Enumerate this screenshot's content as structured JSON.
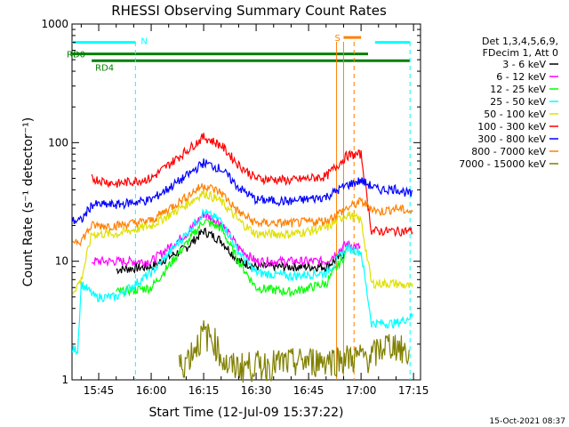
{
  "chart_data": {
    "type": "line",
    "title": "RHESSI Observing Summary Count Rates",
    "xlabel": "Start Time (12-Jul-09 15:37:22)",
    "ylabel": "Count Rate (s⁻¹ detector⁻¹)",
    "x_unit": "minutes",
    "xlim": [
      "15:37:22",
      "17:17"
    ],
    "ylim": [
      1,
      1000
    ],
    "y_scale": "log",
    "x_ticks": [
      "15:45",
      "16:00",
      "16:15",
      "16:30",
      "16:45",
      "17:00",
      "17:15"
    ],
    "y_ticks": [
      "1",
      "10",
      "100",
      "1000"
    ],
    "legend_title": [
      "Det 1,3,4,5,6,9,",
      "FDecim 1, Att 0"
    ],
    "legend_position": "right",
    "date_stamp": "15-Oct-2021 08:37",
    "flags": [
      {
        "label": "N",
        "color": "#00ffff",
        "start": "15:37:22",
        "end": "15:55:30",
        "level": 700
      },
      {
        "label": "N",
        "color": "#00ffff",
        "start": "17:04",
        "end": "17:14",
        "level": 700
      },
      {
        "label": "RD0",
        "color": "#008000",
        "start": "15:37:22",
        "end": "17:02",
        "level": 560
      },
      {
        "label": "RD4",
        "color": "#008000",
        "start": "15:43",
        "end": "17:14",
        "level": 490
      },
      {
        "label": "S",
        "color": "#ff8000",
        "start": "16:55",
        "end": "17:00",
        "level": 770
      }
    ],
    "vlines": [
      {
        "time": "15:55:30",
        "color": "#00ffff",
        "style": "dashed"
      },
      {
        "time": "17:14",
        "color": "#00ffff",
        "style": "dashed"
      },
      {
        "time": "16:53",
        "color": "#ff8000",
        "style": "solid"
      },
      {
        "time": "16:55",
        "color": "#ff8000",
        "style": "solid"
      },
      {
        "time": "16:58",
        "color": "#ff8000",
        "style": "dashed"
      }
    ],
    "series": [
      {
        "name": "3 - 6 keV",
        "color": "#000000",
        "x": [
          "15:37:30",
          "15:43",
          "15:50",
          "16:00",
          "16:10",
          "16:15",
          "16:20",
          "16:25",
          "16:30",
          "16:40",
          "16:50",
          "16:56",
          "17:00"
        ],
        "values": [
          null,
          null,
          8.5,
          9,
          13,
          18,
          15,
          10,
          9,
          9,
          9,
          12,
          null
        ]
      },
      {
        "name": "6 - 12 keV",
        "color": "#ff00ff",
        "x": [
          "15:37:30",
          "15:43",
          "15:50",
          "16:00",
          "16:10",
          "16:15",
          "16:20",
          "16:25",
          "16:30",
          "16:40",
          "16:50",
          "16:56",
          "17:00",
          "17:05",
          "17:15"
        ],
        "values": [
          null,
          10,
          10,
          10,
          17,
          25,
          21,
          13,
          10,
          10,
          10,
          14,
          13,
          null,
          null
        ]
      },
      {
        "name": "12 - 25 keV",
        "color": "#00ff00",
        "x": [
          "15:37:30",
          "15:50",
          "16:00",
          "16:10",
          "16:15",
          "16:20",
          "16:25",
          "16:30",
          "16:40",
          "16:50",
          "16:56",
          "17:00"
        ],
        "values": [
          null,
          5.5,
          6,
          14,
          22,
          19,
          10,
          6,
          5.5,
          6.5,
          12,
          null
        ]
      },
      {
        "name": "25 - 50 keV",
        "color": "#00ffff",
        "x": [
          "15:37:30",
          "15:39",
          "15:40",
          "15:44",
          "15:50",
          "16:00",
          "16:10",
          "16:15",
          "16:20",
          "16:25",
          "16:30",
          "16:40",
          "16:50",
          "16:56",
          "17:00",
          "17:03",
          "17:10",
          "17:15"
        ],
        "values": [
          1.8,
          1.8,
          6.5,
          5,
          5,
          8,
          17,
          26,
          22,
          12,
          8,
          7.5,
          8,
          13,
          12,
          3,
          3,
          3.5
        ]
      },
      {
        "name": "50 - 100 keV",
        "color": "#e0e000",
        "x": [
          "15:37:30",
          "15:40",
          "15:43",
          "15:50",
          "16:00",
          "16:10",
          "16:15",
          "16:20",
          "16:25",
          "16:30",
          "16:40",
          "16:50",
          "16:56",
          "17:00",
          "17:03",
          "17:10",
          "17:15"
        ],
        "values": [
          5.5,
          7,
          17,
          17,
          20,
          30,
          38,
          32,
          22,
          17,
          17,
          19,
          25,
          22,
          6.5,
          6.5,
          6
        ]
      },
      {
        "name": "100 - 300 keV",
        "color": "#ff0000",
        "x": [
          "15:37:30",
          "15:40",
          "15:43",
          "15:50",
          "16:00",
          "16:10",
          "16:15",
          "16:20",
          "16:25",
          "16:30",
          "16:40",
          "16:50",
          "16:56",
          "17:00",
          "17:03",
          "17:10",
          "17:15"
        ],
        "values": [
          null,
          null,
          50,
          45,
          50,
          85,
          112,
          95,
          65,
          50,
          48,
          52,
          78,
          80,
          18,
          18,
          18
        ]
      },
      {
        "name": "300 - 800 keV",
        "color": "#0000ff",
        "x": [
          "15:37:30",
          "15:40",
          "15:43",
          "15:50",
          "16:00",
          "16:10",
          "16:15",
          "16:20",
          "16:25",
          "16:30",
          "16:40",
          "16:50",
          "16:56",
          "17:00",
          "17:05",
          "17:10",
          "17:15"
        ],
        "values": [
          22,
          22,
          30,
          30,
          33,
          52,
          68,
          60,
          42,
          33,
          32,
          35,
          44,
          48,
          40,
          41,
          36
        ]
      },
      {
        "name": "800 - 7000 keV",
        "color": "#ff8000",
        "x": [
          "15:37:30",
          "15:40",
          "15:43",
          "15:50",
          "16:00",
          "16:10",
          "16:15",
          "16:20",
          "16:25",
          "16:30",
          "16:40",
          "16:50",
          "16:56",
          "17:00",
          "17:05",
          "17:10",
          "17:15"
        ],
        "values": [
          15,
          15,
          20,
          20,
          22,
          35,
          44,
          38,
          26,
          21,
          21,
          22,
          28,
          32,
          26,
          28,
          26
        ]
      },
      {
        "name": "7000 - 15000 keV",
        "color": "#808000",
        "x": [
          "16:08",
          "16:10",
          "16:13",
          "16:15",
          "16:18",
          "16:20",
          "16:22",
          "17:03",
          "17:07",
          "17:10",
          "17:14"
        ],
        "values": [
          1.3,
          1.5,
          2,
          2.5,
          2.2,
          1.6,
          1.3,
          1.6,
          2,
          2,
          1.6
        ]
      }
    ]
  }
}
